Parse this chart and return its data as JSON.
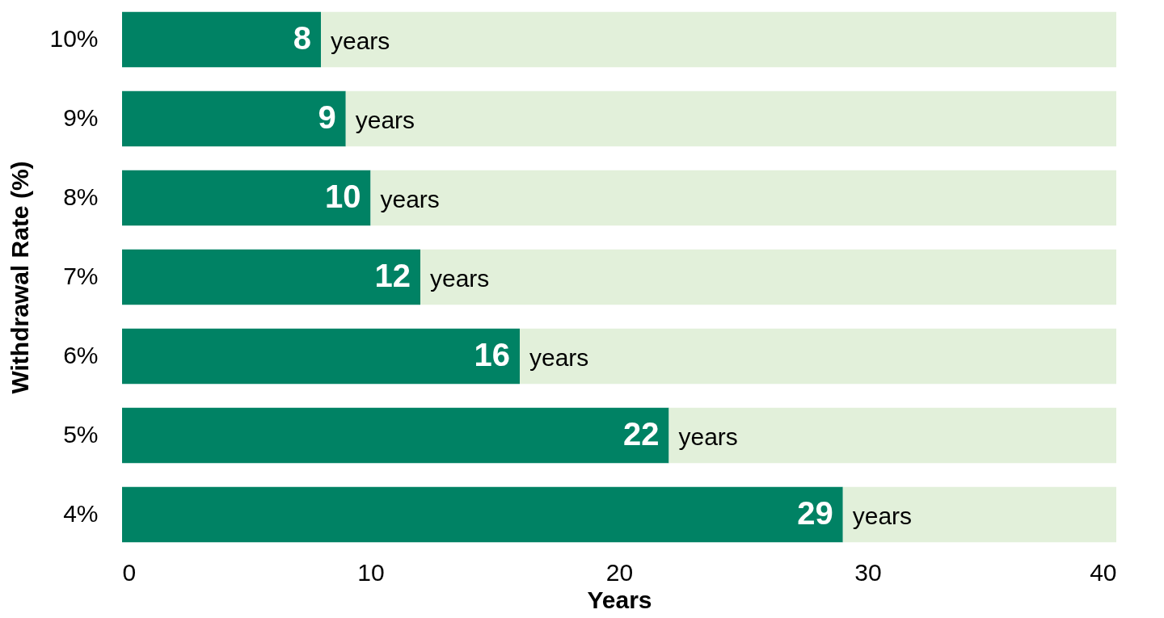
{
  "chart_data": {
    "type": "bar",
    "orientation": "horizontal",
    "stacked": true,
    "xlabel": "Years",
    "ylabel": "Withdrawal Rate (%)",
    "categories": [
      "10%",
      "9%",
      "8%",
      "7%",
      "6%",
      "5%",
      "4%"
    ],
    "series": [
      {
        "color": "#008264",
        "values": [
          8,
          9,
          10,
          12,
          16,
          22,
          29
        ],
        "value_labels": [
          "8",
          "9",
          "10",
          "12",
          "16",
          "22",
          "29"
        ]
      },
      {
        "color": "#e2f0da",
        "values": [
          32,
          31,
          30,
          28,
          24,
          18,
          11
        ],
        "value_labels": [
          "years",
          "years",
          "years",
          "years",
          "years",
          "years",
          "years"
        ]
      }
    ],
    "xlim": [
      0,
      40
    ],
    "xticks": [
      0,
      10,
      20,
      30,
      40
    ],
    "grid": false,
    "legend": false
  }
}
